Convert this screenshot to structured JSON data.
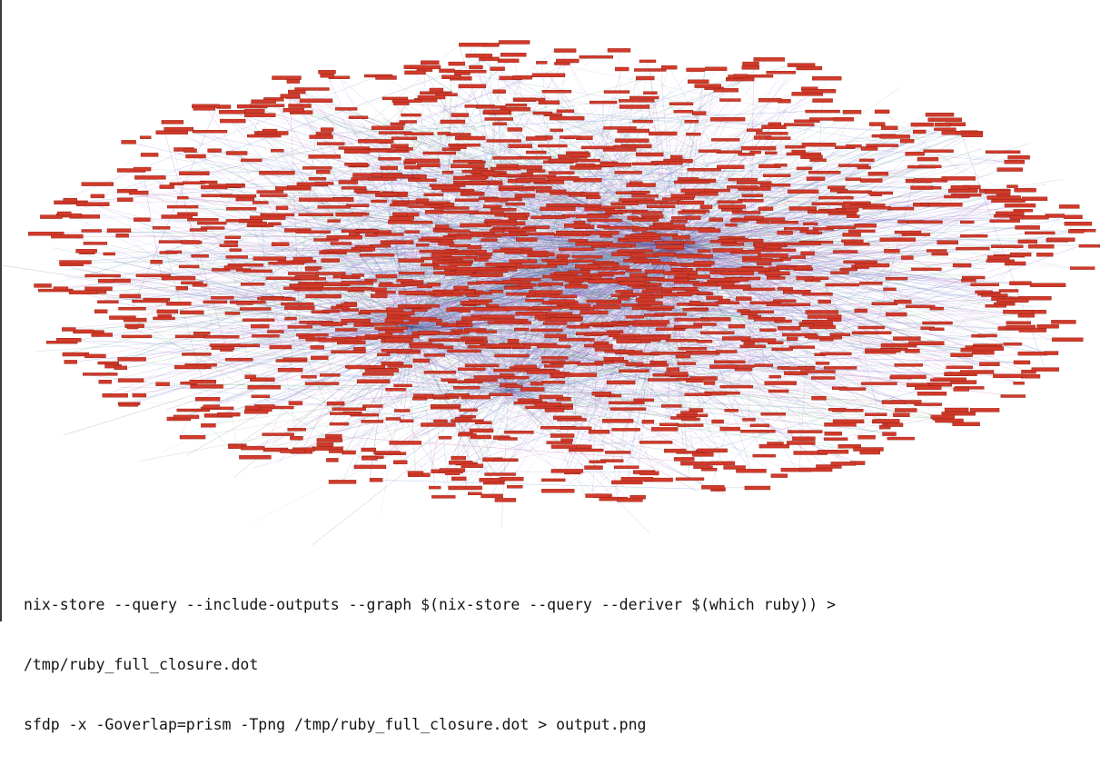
{
  "graph": {
    "kind": "sfdp force-directed dependency graph",
    "node_color": "#d13a2a",
    "node_border_color": "#8f1d12",
    "edge_colors": [
      "#6c5bd0",
      "#c24a9b",
      "#4a7fc9",
      "#3aa05a",
      "#9b8fd6",
      "#b0a8e0"
    ],
    "hub_color": "#2d1f66"
  },
  "commands": {
    "line1": "nix-store --query --include-outputs --graph $(nix-store --query --deriver $(which ruby)) >",
    "line2": "/tmp/ruby_full_closure.dot",
    "line3": "sfdp -x -Goverlap=prism -Tpng /tmp/ruby_full_closure.dot > output.png"
  }
}
